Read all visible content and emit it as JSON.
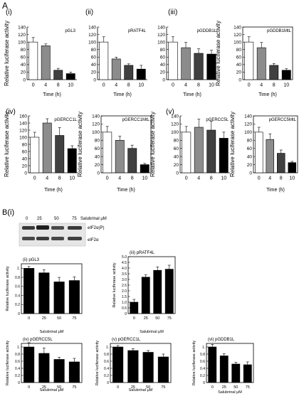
{
  "figure": {
    "panel_a_label": "A",
    "panel_b_label": "B(i)",
    "blot": {
      "conc_values": [
        "0",
        "25",
        "50",
        "75"
      ],
      "conc_label": "Salubrinal μM",
      "bands": [
        "eIF2α(P)",
        "eIF2α"
      ]
    }
  },
  "chart_data": [
    {
      "type": "bar",
      "panel_label": "(i)",
      "title": "pGL3",
      "categories": [
        "0",
        "4",
        "8",
        "10"
      ],
      "values": [
        100,
        90,
        25,
        16
      ],
      "errors": [
        12,
        5,
        5,
        4
      ],
      "colors": [
        "#ffffff",
        "#8c8c8c",
        "#404040",
        "#000000"
      ],
      "ylabel": "Relative luciferase activity",
      "xlabel": "Time (h)",
      "ylim": [
        0,
        140
      ],
      "yticks": [
        0,
        20,
        40,
        60,
        80,
        100,
        120,
        140
      ],
      "boxed": false
    },
    {
      "type": "bar",
      "panel_label": "(ii)",
      "title": "pRATF4L",
      "categories": [
        "0",
        "4",
        "8",
        "10"
      ],
      "values": [
        100,
        55,
        38,
        28
      ],
      "errors": [
        14,
        5,
        4,
        10
      ],
      "colors": [
        "#ffffff",
        "#8c8c8c",
        "#404040",
        "#000000"
      ],
      "ylabel": "",
      "xlabel": "Time (h)",
      "ylim": [
        0,
        140
      ],
      "yticks": [
        0,
        20,
        40,
        60,
        80,
        100,
        120,
        140
      ],
      "boxed": false
    },
    {
      "type": "bar",
      "panel_label": "(iii)",
      "title": "pGDDB1L",
      "categories": [
        "0",
        "4",
        "8",
        "10"
      ],
      "values": [
        100,
        85,
        70,
        68
      ],
      "errors": [
        14,
        14,
        12,
        10
      ],
      "colors": [
        "#ffffff",
        "#8c8c8c",
        "#404040",
        "#000000"
      ],
      "ylabel": "",
      "xlabel": "Time (h)",
      "ylim": [
        0,
        140
      ],
      "yticks": [
        0,
        20,
        40,
        60,
        80,
        100,
        120,
        140
      ],
      "boxed": false
    },
    {
      "type": "bar",
      "panel_label": "",
      "title": "pGDDB1MtL",
      "categories": [
        "0",
        "4",
        "8",
        "10"
      ],
      "values": [
        100,
        85,
        38,
        25
      ],
      "errors": [
        14,
        14,
        5,
        4
      ],
      "colors": [
        "#ffffff",
        "#8c8c8c",
        "#404040",
        "#000000"
      ],
      "ylabel": "Relative luciferase activity",
      "xlabel": "Time (h)",
      "ylim": [
        0,
        140
      ],
      "yticks": [
        0,
        20,
        40,
        60,
        80,
        100,
        120,
        140
      ],
      "boxed": true
    },
    {
      "type": "bar",
      "panel_label": "(iv)",
      "title": "pGERCC1L",
      "categories": [
        "0",
        "4",
        "8",
        "10"
      ],
      "values": [
        100,
        140,
        105,
        68
      ],
      "errors": [
        14,
        12,
        22,
        8
      ],
      "colors": [
        "#ffffff",
        "#8c8c8c",
        "#404040",
        "#000000"
      ],
      "ylabel": "Relative luciferase activity",
      "xlabel": "Time (h)",
      "ylim": [
        0,
        160
      ],
      "yticks": [
        0,
        20,
        40,
        60,
        80,
        100,
        120,
        140,
        160
      ],
      "boxed": false
    },
    {
      "type": "bar",
      "panel_label": "",
      "title": "pGERCC1MtL",
      "categories": [
        "0",
        "4",
        "8",
        "10"
      ],
      "values": [
        100,
        80,
        60,
        20
      ],
      "errors": [
        14,
        10,
        8,
        3
      ],
      "colors": [
        "#ffffff",
        "#8c8c8c",
        "#404040",
        "#000000"
      ],
      "ylabel": "Relative luciferase activity",
      "xlabel": "Time (h)",
      "ylim": [
        0,
        140
      ],
      "yticks": [
        0,
        20,
        40,
        60,
        80,
        100,
        120,
        140
      ],
      "boxed": true
    },
    {
      "type": "bar",
      "panel_label": "(v)",
      "title": "pGERCC5L",
      "categories": [
        "0",
        "4",
        "8",
        "10"
      ],
      "values": [
        100,
        112,
        105,
        85
      ],
      "errors": [
        14,
        20,
        22,
        15
      ],
      "colors": [
        "#ffffff",
        "#8c8c8c",
        "#404040",
        "#000000"
      ],
      "ylabel": "Relative luciferase activity",
      "xlabel": "",
      "ylim": [
        0,
        140
      ],
      "yticks": [
        0,
        20,
        40,
        60,
        80,
        100,
        120,
        140
      ],
      "boxed": false
    },
    {
      "type": "bar",
      "panel_label": "",
      "title": "pGERCC5MtL",
      "categories": [
        "0",
        "4",
        "8",
        "10"
      ],
      "values": [
        100,
        82,
        48,
        25
      ],
      "errors": [
        12,
        14,
        8,
        3
      ],
      "colors": [
        "#ffffff",
        "#8c8c8c",
        "#404040",
        "#000000"
      ],
      "ylabel": "Relative luciferase activity",
      "xlabel": "Time (h)",
      "ylim": [
        0,
        140
      ],
      "yticks": [
        0,
        20,
        40,
        60,
        80,
        100,
        120,
        140
      ],
      "boxed": true
    },
    {
      "type": "bar",
      "panel_label": "(ii)",
      "title": "pGL3",
      "categories": [
        "0",
        "25",
        "50",
        "75"
      ],
      "values": [
        1.0,
        0.9,
        0.7,
        0.73
      ],
      "errors": [
        0.04,
        0.07,
        0.1,
        0.08
      ],
      "colors": [
        "#000000",
        "#000000",
        "#000000",
        "#000000"
      ],
      "ylabel": "Relative luciferase activity",
      "xlabel": "Salubrinal μM",
      "ylim": [
        0,
        1.1
      ],
      "yticks": [
        0,
        0.2,
        0.4,
        0.6,
        0.8,
        1.0
      ],
      "ytick_labels": [
        "0",
        "0.2",
        "0.4",
        "0.6",
        "0.8",
        "1."
      ],
      "boxed": true
    },
    {
      "type": "bar",
      "panel_label": "(iii)",
      "title": "pRATF4L",
      "categories": [
        "0",
        "25",
        "50",
        "75"
      ],
      "values": [
        1.0,
        3.2,
        3.8,
        3.9
      ],
      "errors": [
        0.25,
        0.2,
        0.3,
        0.35
      ],
      "colors": [
        "#000000",
        "#000000",
        "#000000",
        "#000000"
      ],
      "ylabel": "Relative luciferase activity",
      "xlabel": "Salubrinal μM",
      "ylim": [
        0,
        5
      ],
      "yticks": [
        0,
        0.5,
        1.0,
        1.5,
        2.0,
        2.5,
        3.0,
        3.5,
        4.0,
        4.5,
        5.0
      ],
      "ytick_labels": [
        "0",
        "0.5",
        "1.0",
        "1.5",
        "2.0",
        "2.5",
        "3.0",
        "3.5",
        "4.0",
        "4.5",
        "5.0"
      ],
      "boxed": true
    },
    {
      "type": "bar",
      "panel_label": "(iv)",
      "title": "pGERCC5L",
      "categories": [
        "0",
        "25",
        "50",
        "75"
      ],
      "values": [
        1.0,
        0.82,
        0.65,
        0.58
      ],
      "errors": [
        0.12,
        0.15,
        0.06,
        0.1
      ],
      "colors": [
        "#000000",
        "#000000",
        "#000000",
        "#000000"
      ],
      "ylabel": "Relative luciferase activity",
      "xlabel": "Salubrinal μM",
      "ylim": [
        0,
        1.1
      ],
      "yticks": [
        0,
        0.2,
        0.4,
        0.6,
        0.8,
        1.0
      ],
      "ytick_labels": [
        "0",
        "0.2",
        "0.4",
        "0.6",
        "0.8",
        "1."
      ],
      "boxed": true
    },
    {
      "type": "bar",
      "panel_label": "(v)",
      "title": "pGERCC1L",
      "categories": [
        "0",
        "25",
        "50",
        "75"
      ],
      "values": [
        1.0,
        0.9,
        0.85,
        0.72
      ],
      "errors": [
        0.04,
        0.05,
        0.05,
        0.08
      ],
      "colors": [
        "#000000",
        "#000000",
        "#000000",
        "#000000"
      ],
      "ylabel": "Relative luciferase activity",
      "xlabel": "Salubrinal μM",
      "ylim": [
        0,
        1.1
      ],
      "yticks": [
        0,
        0.2,
        0.4,
        0.6,
        0.8,
        1.0
      ],
      "ytick_labels": [
        "0",
        "0.2",
        "0.4",
        "0.6",
        "0.8",
        "1."
      ],
      "boxed": true
    },
    {
      "type": "bar",
      "panel_label": "(vi)",
      "title": "pGDDB1L",
      "categories": [
        "0",
        "25",
        "50",
        "75"
      ],
      "values": [
        1.0,
        0.75,
        0.52,
        0.5
      ],
      "errors": [
        0.07,
        0.06,
        0.05,
        0.08
      ],
      "colors": [
        "#000000",
        "#000000",
        "#000000",
        "#000000"
      ],
      "ylabel": "Relative luciferase activity",
      "xlabel": "Salubrinal μM",
      "ylim": [
        0,
        1.1
      ],
      "yticks": [
        0,
        0.2,
        0.4,
        0.6,
        0.8,
        1.0
      ],
      "ytick_labels": [
        "0",
        "0.2",
        "0.4",
        "0.6",
        "0.8",
        "1."
      ],
      "boxed": true
    }
  ]
}
